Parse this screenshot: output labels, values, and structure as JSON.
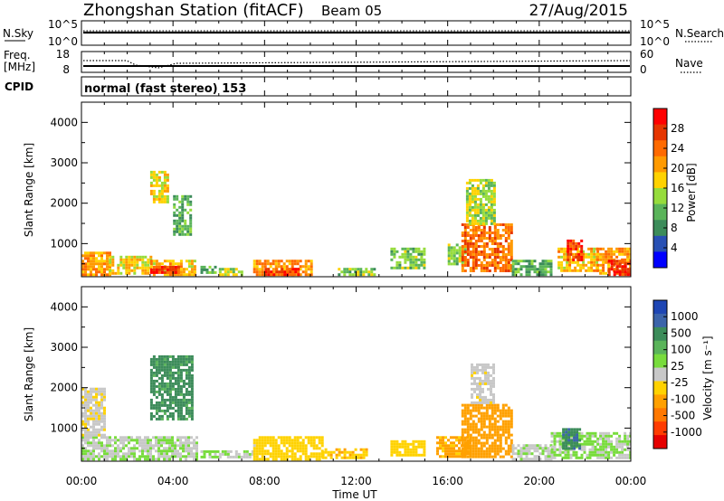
{
  "header": {
    "station": "Zhongshan Station (fitACF)",
    "beam": "Beam 05",
    "date": "27/Aug/2015"
  },
  "noise_panel": {
    "left_label": "N.Sky",
    "left_ticks": [
      "10^5",
      "10^0"
    ],
    "right_label": "N.Search",
    "right_ticks": [
      "10^5",
      "10^0"
    ]
  },
  "freq_panel": {
    "left_label_1": "Freq.",
    "left_label_2": "[MHz]",
    "left_ticks": [
      "18",
      "8"
    ],
    "right_label": "Nave",
    "right_ticks": [
      "60",
      "0"
    ]
  },
  "cpid": {
    "label": "CPID",
    "mode_text": "normal (fast stereo) 153"
  },
  "power_panel": {
    "ylabel": "Slant Range [km]",
    "yticks": [
      "4000",
      "3000",
      "2000",
      "1000"
    ],
    "colorbar_label": "Power [dB]",
    "colorbar_ticks": [
      "28",
      "24",
      "20",
      "16",
      "12",
      "8",
      "4"
    ],
    "colors": [
      "#ff0000",
      "#e63500",
      "#ff6a00",
      "#ff9a00",
      "#ffd200",
      "#96dc3c",
      "#5ab45a",
      "#3c8c5a",
      "#2850b4",
      "#0000ff"
    ]
  },
  "velocity_panel": {
    "ylabel": "Slant Range [km]",
    "yticks": [
      "4000",
      "3000",
      "2000",
      "1000"
    ],
    "colorbar_label": "Velocity [m s⁻¹]",
    "colorbar_ticks": [
      "1000",
      "500",
      "100",
      "25",
      "-25",
      "-100",
      "-500",
      "-1000"
    ],
    "colors": [
      "#1e46b4",
      "#3c64aa",
      "#3c8c5a",
      "#5ab45a",
      "#78dc3c",
      "#c8c8c8",
      "#ffd200",
      "#ffa000",
      "#ff7800",
      "#ff3c00",
      "#e60000"
    ]
  },
  "x_axis": {
    "label": "Time UT",
    "ticks": [
      "00:00",
      "04:00",
      "08:00",
      "12:00",
      "16:00",
      "20:00",
      "00:00"
    ]
  },
  "chart_data": {
    "type": "heatmap",
    "x_unit": "hours UT",
    "xlim": [
      0,
      24
    ],
    "ylim": [
      180,
      4500
    ],
    "power_clim": [
      0,
      30
    ],
    "velocity_clim": [
      -1000,
      1000
    ],
    "power_patches": [
      {
        "t": [
          0.0,
          1.2
        ],
        "r": [
          250,
          800
        ],
        "value": 20
      },
      {
        "t": [
          1.2,
          3.0
        ],
        "r": [
          250,
          700
        ],
        "value": 16
      },
      {
        "t": [
          3.0,
          5.0
        ],
        "r": [
          250,
          600
        ],
        "value": 18
      },
      {
        "t": [
          3.0,
          4.2
        ],
        "r": [
          250,
          450
        ],
        "value": 26
      },
      {
        "t": [
          3.0,
          3.8
        ],
        "r": [
          2000,
          2800
        ],
        "value": 16
      },
      {
        "t": [
          4.0,
          4.8
        ],
        "r": [
          1200,
          2200
        ],
        "value": 10
      },
      {
        "t": [
          5.2,
          5.8
        ],
        "r": [
          250,
          450
        ],
        "value": 10
      },
      {
        "t": [
          6.0,
          7.0
        ],
        "r": [
          250,
          400
        ],
        "value": 14
      },
      {
        "t": [
          7.5,
          10.0
        ],
        "r": [
          250,
          600
        ],
        "value": 20
      },
      {
        "t": [
          8.0,
          9.5
        ],
        "r": [
          250,
          400
        ],
        "value": 26
      },
      {
        "t": [
          11.2,
          12.8
        ],
        "r": [
          250,
          400
        ],
        "value": 12
      },
      {
        "t": [
          13.5,
          15.0
        ],
        "r": [
          400,
          900
        ],
        "value": 12
      },
      {
        "t": [
          16.0,
          16.8
        ],
        "r": [
          500,
          1000
        ],
        "value": 12
      },
      {
        "t": [
          16.6,
          18.8
        ],
        "r": [
          300,
          1500
        ],
        "value": 22
      },
      {
        "t": [
          16.8,
          18.0
        ],
        "r": [
          1500,
          2600
        ],
        "value": 14
      },
      {
        "t": [
          18.8,
          20.5
        ],
        "r": [
          250,
          600
        ],
        "value": 10
      },
      {
        "t": [
          20.8,
          22.5
        ],
        "r": [
          300,
          900
        ],
        "value": 18
      },
      {
        "t": [
          21.2,
          21.8
        ],
        "r": [
          600,
          1100
        ],
        "value": 26
      },
      {
        "t": [
          22.5,
          24.0
        ],
        "r": [
          250,
          900
        ],
        "value": 20
      },
      {
        "t": [
          23.0,
          24.0
        ],
        "r": [
          250,
          600
        ],
        "value": 26
      }
    ],
    "velocity_patches": [
      {
        "t": [
          0.0,
          5.0
        ],
        "r": [
          250,
          800
        ],
        "value": 80
      },
      {
        "t": [
          0.0,
          1.0
        ],
        "r": [
          800,
          2000
        ],
        "value": -60
      },
      {
        "t": [
          3.0,
          4.8
        ],
        "r": [
          1200,
          2800
        ],
        "value": 500
      },
      {
        "t": [
          5.2,
          6.0
        ],
        "r": [
          250,
          450
        ],
        "value": 120
      },
      {
        "t": [
          6.0,
          7.5
        ],
        "r": [
          250,
          450
        ],
        "value": 60
      },
      {
        "t": [
          7.5,
          10.5
        ],
        "r": [
          250,
          800
        ],
        "value": -150
      },
      {
        "t": [
          10.5,
          12.5
        ],
        "r": [
          250,
          500
        ],
        "value": -250
      },
      {
        "t": [
          13.5,
          15.0
        ],
        "r": [
          300,
          700
        ],
        "value": -200
      },
      {
        "t": [
          15.5,
          17.0
        ],
        "r": [
          300,
          800
        ],
        "value": -300
      },
      {
        "t": [
          16.6,
          18.8
        ],
        "r": [
          300,
          1600
        ],
        "value": -350
      },
      {
        "t": [
          17.0,
          18.0
        ],
        "r": [
          1600,
          2600
        ],
        "value": -40
      },
      {
        "t": [
          18.8,
          20.5
        ],
        "r": [
          250,
          600
        ],
        "value": 60
      },
      {
        "t": [
          20.5,
          22.5
        ],
        "r": [
          250,
          900
        ],
        "value": 120
      },
      {
        "t": [
          21.0,
          21.8
        ],
        "r": [
          500,
          1000
        ],
        "value": 600
      },
      {
        "t": [
          22.5,
          24.0
        ],
        "r": [
          250,
          900
        ],
        "value": 90
      }
    ]
  }
}
